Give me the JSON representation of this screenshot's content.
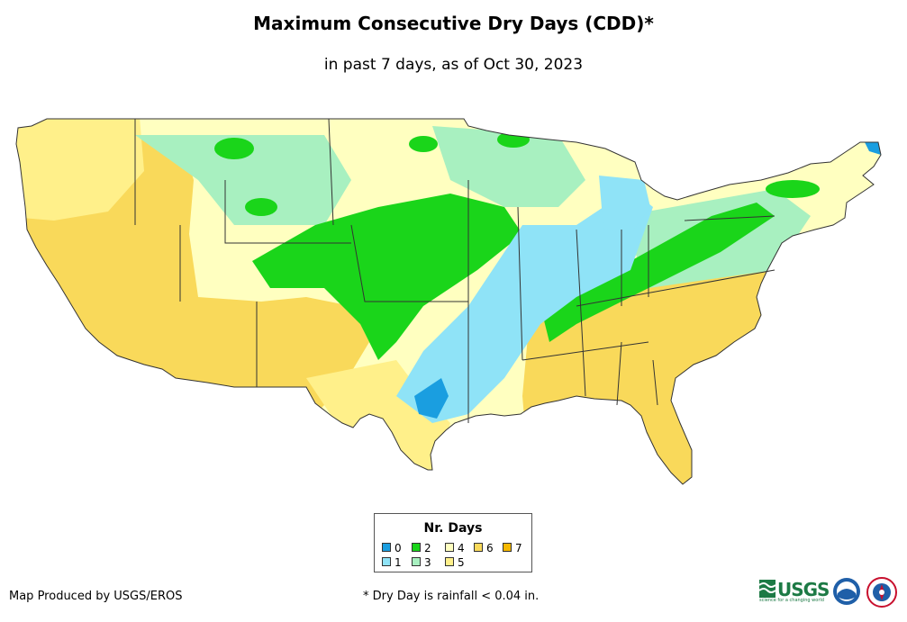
{
  "title": "Maximum Consecutive Dry Days (CDD)*",
  "subtitle": "in past 7 days, as of Oct 30, 2023",
  "legend": {
    "title": "Nr. Days",
    "items": [
      {
        "label": "0",
        "color": "#1a9ee0"
      },
      {
        "label": "1",
        "color": "#8fe3f7"
      },
      {
        "label": "2",
        "color": "#1ad51a"
      },
      {
        "label": "3",
        "color": "#a8f0c0"
      },
      {
        "label": "4",
        "color": "#ffffc0"
      },
      {
        "label": "5",
        "color": "#fff08a"
      },
      {
        "label": "6",
        "color": "#f9d95a"
      },
      {
        "label": "7",
        "color": "#f5b800"
      }
    ]
  },
  "credit": "Map Produced by USGS/EROS",
  "footnote": "* Dry Day is rainfall < 0.04 in.",
  "logos": {
    "usgs": "USGS",
    "usgs_tagline": "science for a changing world"
  },
  "colors": {
    "state_border": "#333333",
    "background": "#ffffff"
  }
}
